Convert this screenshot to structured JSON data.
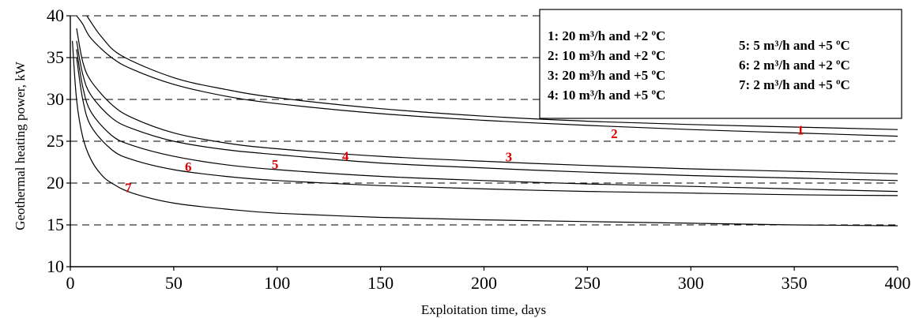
{
  "chart_data": {
    "type": "line",
    "title": "",
    "xlabel": "Exploitation time, days",
    "ylabel": "Geothermal heating power, kW",
    "xlim": [
      0,
      400
    ],
    "ylim": [
      10,
      40
    ],
    "x_ticks": [
      "0",
      "50",
      "100",
      "150",
      "200",
      "250",
      "300",
      "350",
      "400"
    ],
    "y_ticks": [
      "10",
      "15",
      "20",
      "25",
      "30",
      "35",
      "40"
    ],
    "grid": "horizontal dashed at 15, 20, 25, 30, 35, 40",
    "legend_position": "top-right",
    "legend": {
      "column1": [
        "1: 20 m³/h and +2 ºC",
        "2: 10 m³/h and +2 ºC",
        "3: 20 m³/h and +5 ºC",
        "4: 10 m³/h and +5 ºC"
      ],
      "column2": [
        "5:  5 m³/h and +5 ºC",
        "6:  2 m³/h and +2 ºC",
        "7:  2 m³/h and +5 ºC"
      ]
    },
    "series": [
      {
        "name": "1: 20 m³/h and +2 ºC",
        "label": "1",
        "label_at": [
          353,
          25.8
        ],
        "color": "#000000",
        "x": [
          8,
          15,
          25,
          50,
          75,
          100,
          150,
          200,
          250,
          300,
          350,
          400
        ],
        "y": [
          40,
          37.5,
          35.2,
          32.6,
          31.2,
          30.2,
          28.9,
          28.0,
          27.4,
          27.0,
          26.7,
          26.4
        ]
      },
      {
        "name": "2: 10 m³/h and +2 ºC",
        "label": "2",
        "label_at": [
          263,
          25.4
        ],
        "color": "#000000",
        "x": [
          3,
          6,
          10,
          20,
          30,
          50,
          75,
          100,
          150,
          200,
          250,
          300,
          350,
          400
        ],
        "y": [
          40,
          39,
          37.3,
          35.0,
          33.6,
          31.8,
          30.4,
          29.5,
          28.3,
          27.5,
          26.9,
          26.4,
          26.0,
          25.6
        ]
      },
      {
        "name": "3: 20 m³/h and +5 ºC",
        "label": "3",
        "label_at": [
          212,
          22.6
        ],
        "color": "#000000",
        "x": [
          3,
          6,
          10,
          20,
          30,
          50,
          75,
          100,
          150,
          200,
          250,
          300,
          350,
          400
        ],
        "y": [
          38.5,
          34.5,
          32.2,
          29.4,
          27.8,
          26.0,
          24.8,
          24.1,
          23.2,
          22.6,
          22.1,
          21.7,
          21.4,
          21.1
        ]
      },
      {
        "name": "4: 10 m³/h and +5 ºC",
        "label": "4",
        "label_at": [
          133,
          22.7
        ],
        "color": "#000000",
        "x": [
          3,
          6,
          10,
          20,
          30,
          50,
          75,
          100,
          150,
          200,
          250,
          300,
          350,
          400
        ],
        "y": [
          37.0,
          33.0,
          30.5,
          27.8,
          26.5,
          25.0,
          24.0,
          23.4,
          22.4,
          21.8,
          21.3,
          20.9,
          20.6,
          20.3
        ]
      },
      {
        "name": "5:  5 m³/h and +5 ºC",
        "label": "5",
        "label_at": [
          99,
          21.7
        ],
        "color": "#000000",
        "x": [
          3,
          6,
          10,
          20,
          30,
          50,
          75,
          100,
          150,
          200,
          250,
          300,
          350,
          400
        ],
        "y": [
          36.0,
          31.5,
          28.5,
          25.7,
          24.5,
          23.2,
          22.2,
          21.6,
          20.8,
          20.3,
          19.9,
          19.6,
          19.3,
          19.0
        ]
      },
      {
        "name": "6:  2 m³/h and +2 ºC",
        "label": "6",
        "label_at": [
          57,
          21.4
        ],
        "color": "#000000",
        "x": [
          3,
          6,
          10,
          20,
          30,
          50,
          75,
          100,
          150,
          200,
          250,
          300,
          350,
          400
        ],
        "y": [
          35.0,
          30.0,
          26.8,
          24.0,
          22.8,
          21.6,
          20.8,
          20.3,
          19.7,
          19.3,
          19.0,
          18.8,
          18.6,
          18.5
        ]
      },
      {
        "name": "7:  2 m³/h and +5 ºC",
        "label": "7",
        "label_at": [
          28,
          18.9
        ],
        "color": "#000000",
        "x": [
          1,
          3,
          6,
          10,
          15,
          20,
          30,
          50,
          75,
          100,
          150,
          200,
          250,
          300,
          350,
          400
        ],
        "y": [
          37.0,
          30.0,
          25.5,
          22.8,
          21.0,
          20.0,
          18.8,
          17.6,
          16.9,
          16.4,
          15.9,
          15.6,
          15.4,
          15.2,
          15.0,
          14.9
        ]
      }
    ]
  }
}
